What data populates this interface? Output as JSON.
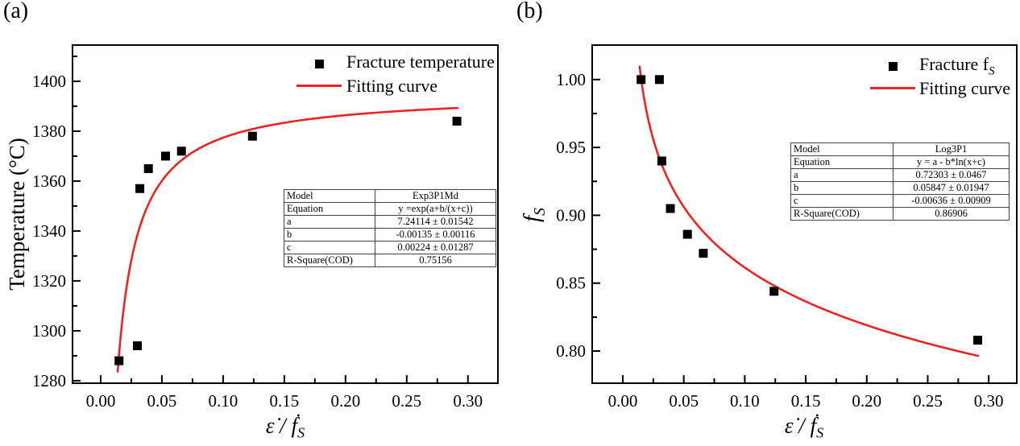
{
  "figure": {
    "panels": [
      {
        "tag": "(a)",
        "ylabel_main": "Temperature (°C)",
        "ylabel_sub": "",
        "xlabel_main": "ε̇ / ḟ",
        "xlabel_sub": "S",
        "legend": {
          "item1_label": "Fracture temperature",
          "item1_label_sub": "",
          "item2_label": "Fitting curve"
        },
        "table": {
          "rows": [
            [
              "Model",
              "Exp3P1Md"
            ],
            [
              "Equation",
              "y =exp(a+b/(x+c))"
            ],
            [
              "a",
              "7.24114 ± 0.01542"
            ],
            [
              "b",
              "-0.00135 ± 0.00116"
            ],
            [
              "c",
              "0.00224 ± 0.01287"
            ],
            [
              "R-Square(COD)",
              "0.75156"
            ]
          ]
        }
      },
      {
        "tag": "(b)",
        "ylabel_main": "f",
        "ylabel_sub": "S",
        "xlabel_main": "ε̇ / ḟ",
        "xlabel_sub": "S",
        "legend": {
          "item1_label": "Fracture f",
          "item1_label_sub": "S",
          "item2_label": "Fitting curve"
        },
        "table": {
          "rows": [
            [
              "Model",
              "Log3P1"
            ],
            [
              "Equation",
              "y = a - b*ln(x+c)"
            ],
            [
              "a",
              "0.72303 ± 0.0467"
            ],
            [
              "b",
              "0.05847 ± 0.01947"
            ],
            [
              "c",
              "-0.00636 ± 0.00909"
            ],
            [
              "R-Square(COD)",
              "0.86906"
            ]
          ]
        }
      }
    ]
  },
  "chart_data": [
    {
      "type": "scatter",
      "title": "",
      "xlabel": "ε̇ / ḟ_S",
      "ylabel": "Temperature (°C)",
      "xlim": [
        -0.023,
        0.3245
      ],
      "ylim": [
        1279,
        1414.5
      ],
      "xticks": [
        0.0,
        0.05,
        0.1,
        0.15,
        0.2,
        0.25,
        0.3
      ],
      "yticks": [
        1280,
        1300,
        1320,
        1340,
        1360,
        1380,
        1400
      ],
      "x_minor": [
        0.025,
        0.075,
        0.125,
        0.175,
        0.225,
        0.275
      ],
      "y_minor": [
        1290,
        1310,
        1330,
        1350,
        1370,
        1390,
        1410
      ],
      "x_tick_decimals": 2,
      "y_tick_decimals": 0,
      "grid": false,
      "legend_position": "upper right",
      "series": [
        {
          "name": "Fracture temperature",
          "type": "scatter",
          "marker": "square",
          "color": "#000000",
          "x": [
            0.015,
            0.03,
            0.032,
            0.039,
            0.053,
            0.066,
            0.124,
            0.291
          ],
          "y": [
            1288,
            1294,
            1357,
            1365,
            1370,
            1372,
            1378,
            1384
          ]
        },
        {
          "name": "Fitting curve",
          "type": "line",
          "color": "#ee2222",
          "model": "Exp3P1Md",
          "equation": "y =exp(a+b/(x+c))",
          "params": {
            "a": 7.24114,
            "b": -0.00135,
            "c": 0.00224
          },
          "param_errors": {
            "a": 0.01542,
            "b": 0.00116,
            "c": 0.01287
          },
          "r_square_cod": 0.75156,
          "x_range": [
            0.0139,
            0.2915
          ]
        }
      ]
    },
    {
      "type": "scatter",
      "title": "",
      "xlabel": "ε̇ / ḟ_S",
      "ylabel": "f_S",
      "xlim": [
        -0.0251,
        0.323
      ],
      "ylim": [
        0.7763,
        1.0254
      ],
      "xticks": [
        0.0,
        0.05,
        0.1,
        0.15,
        0.2,
        0.25,
        0.3
      ],
      "yticks": [
        0.8,
        0.85,
        0.9,
        0.95,
        1.0
      ],
      "x_minor": [
        0.025,
        0.075,
        0.125,
        0.175,
        0.225,
        0.275
      ],
      "y_minor": [
        0.825,
        0.875,
        0.925,
        0.975
      ],
      "x_tick_decimals": 2,
      "y_tick_decimals": 2,
      "grid": false,
      "legend_position": "upper right",
      "series": [
        {
          "name": "Fracture f_S",
          "type": "scatter",
          "marker": "square",
          "color": "#000000",
          "x": [
            0.015,
            0.03,
            0.032,
            0.039,
            0.053,
            0.066,
            0.124,
            0.291
          ],
          "y": [
            1.0,
            1.0,
            0.94,
            0.905,
            0.886,
            0.872,
            0.844,
            0.808
          ]
        },
        {
          "name": "Fitting curve",
          "type": "line",
          "color": "#ee2222",
          "model": "Log3P1",
          "equation": "y = a - b*ln(x+c)",
          "params": {
            "a": 0.72303,
            "b": 0.05847,
            "c": -0.00636
          },
          "param_errors": {
            "a": 0.0467,
            "b": 0.01947,
            "c": 0.00909
          },
          "r_square_cod": 0.86906,
          "x_range": [
            0.0138,
            0.2912
          ]
        }
      ]
    }
  ]
}
